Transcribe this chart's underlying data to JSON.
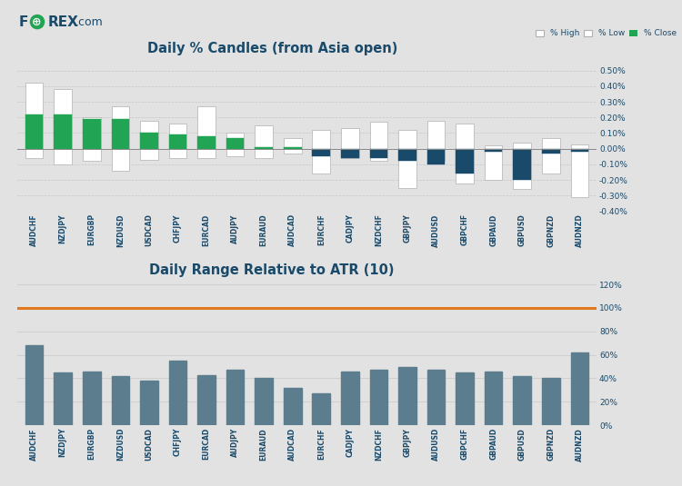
{
  "pairs": [
    "AUDCHF",
    "NZDJPY",
    "EURGBP",
    "NZDUSD",
    "USDCAD",
    "CHFJPY",
    "EURCAD",
    "AUDJPY",
    "EURAUD",
    "AUDCAD",
    "EURCHF",
    "CADJPY",
    "NZDCHF",
    "GBPJPY",
    "AUDUSD",
    "GBPCHF",
    "GBPAUD",
    "GBPUSD",
    "GBPNZD",
    "AUDNZD"
  ],
  "high": [
    0.42,
    0.38,
    0.2,
    0.27,
    0.18,
    0.16,
    0.27,
    0.1,
    0.15,
    0.07,
    0.12,
    0.13,
    0.17,
    0.12,
    0.18,
    0.16,
    0.02,
    0.04,
    0.07,
    0.03
  ],
  "low": [
    -0.06,
    -0.1,
    -0.08,
    -0.14,
    -0.07,
    -0.06,
    -0.06,
    -0.05,
    -0.06,
    -0.03,
    -0.16,
    -0.06,
    -0.08,
    -0.25,
    -0.08,
    -0.22,
    -0.2,
    -0.26,
    -0.16,
    -0.31
  ],
  "close": [
    0.22,
    0.22,
    0.19,
    0.19,
    0.1,
    0.09,
    0.08,
    0.07,
    0.01,
    0.01,
    -0.05,
    -0.06,
    -0.06,
    -0.08,
    -0.1,
    -0.16,
    -0.02,
    -0.2,
    -0.03,
    -0.02
  ],
  "atr_pct": [
    68,
    45,
    46,
    42,
    38,
    55,
    43,
    47,
    40,
    32,
    27,
    46,
    47,
    50,
    47,
    45,
    46,
    42,
    40,
    62
  ],
  "title1": "Daily % Candles (from Asia open)",
  "title2": "Daily Range Relative to ATR (10)",
  "ylim1": [
    -0.4,
    0.5
  ],
  "yticks1": [
    -0.4,
    -0.3,
    -0.2,
    -0.1,
    0.0,
    0.1,
    0.2,
    0.3,
    0.4,
    0.5
  ],
  "ylim2": [
    0,
    120
  ],
  "yticks2": [
    0,
    20,
    40,
    60,
    80,
    100,
    120
  ],
  "color_high": "#ffffff",
  "color_close_pos": "#22a455",
  "color_close_neg": "#1a4a6a",
  "color_bar_atr": "#5c7d8d",
  "color_atr_line": "#e07820",
  "bg_color": "#e2e2e2",
  "grid_color": "#c8c8c8",
  "axis_color": "#1a4a6a",
  "forex_green": "#22a455",
  "forex_dark": "#1a4a6a"
}
